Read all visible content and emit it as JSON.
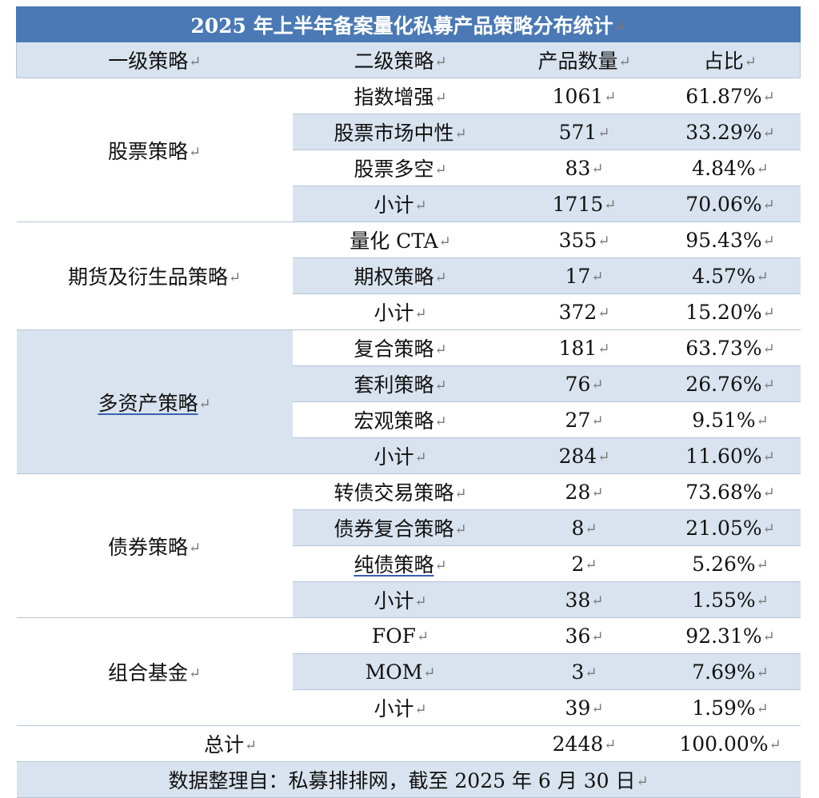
{
  "title": "2025 年上半年备案量化私募产品策略分布统计",
  "headers": [
    "一级策略",
    "二级策略",
    "产品数量",
    "占比"
  ],
  "groups": [
    {
      "name": "股票策略",
      "rows": [
        {
          "sub": "指数增强",
          "count": "1061",
          "pct": "61.87%"
        },
        {
          "sub": "股票市场中性",
          "count": "571",
          "pct": "33.29%"
        },
        {
          "sub": "股票多空",
          "count": "83",
          "pct": "4.84%"
        },
        {
          "sub": "小计",
          "count": "1715",
          "pct": "70.06%"
        }
      ]
    },
    {
      "name": "期货及衍生品策略",
      "rows": [
        {
          "sub": "量化 CTA",
          "count": "355",
          "pct": "95.43%"
        },
        {
          "sub": "期权策略",
          "count": "17",
          "pct": "4.57%"
        },
        {
          "sub": "小计",
          "count": "372",
          "pct": "15.20%"
        }
      ]
    },
    {
      "name": "多资产策略",
      "rows": [
        {
          "sub": "复合策略",
          "count": "181",
          "pct": "63.73%"
        },
        {
          "sub": "套利策略",
          "count": "76",
          "pct": "26.76%"
        },
        {
          "sub": "宏观策略",
          "count": "27",
          "pct": "9.51%"
        },
        {
          "sub": "小计",
          "count": "284",
          "pct": "11.60%"
        }
      ]
    },
    {
      "name": "债券策略",
      "rows": [
        {
          "sub": "转债交易策略",
          "count": "28",
          "pct": "73.68%"
        },
        {
          "sub": "债券复合策略",
          "count": "8",
          "pct": "21.05%"
        },
        {
          "sub": "纯债策略",
          "count": "2",
          "pct": "5.26%"
        },
        {
          "sub": "小计",
          "count": "38",
          "pct": "1.55%"
        }
      ]
    },
    {
      "name": "组合基金",
      "rows": [
        {
          "sub": "FOF",
          "count": "36",
          "pct": "92.31%"
        },
        {
          "sub": "MOM",
          "count": "3",
          "pct": "7.69%"
        },
        {
          "sub": "小计",
          "count": "39",
          "pct": "1.59%"
        }
      ]
    }
  ],
  "total": {
    "label": "总计",
    "count": "2448",
    "pct": "100.00%"
  },
  "footer": "数据整理自：私募排排网，截至 2025 年 6 月 30 日",
  "return_mark": "↵",
  "colors": {
    "title_bg": "#4a79b5",
    "band": "#d9e3ef",
    "rule": "#b6c4d8"
  }
}
